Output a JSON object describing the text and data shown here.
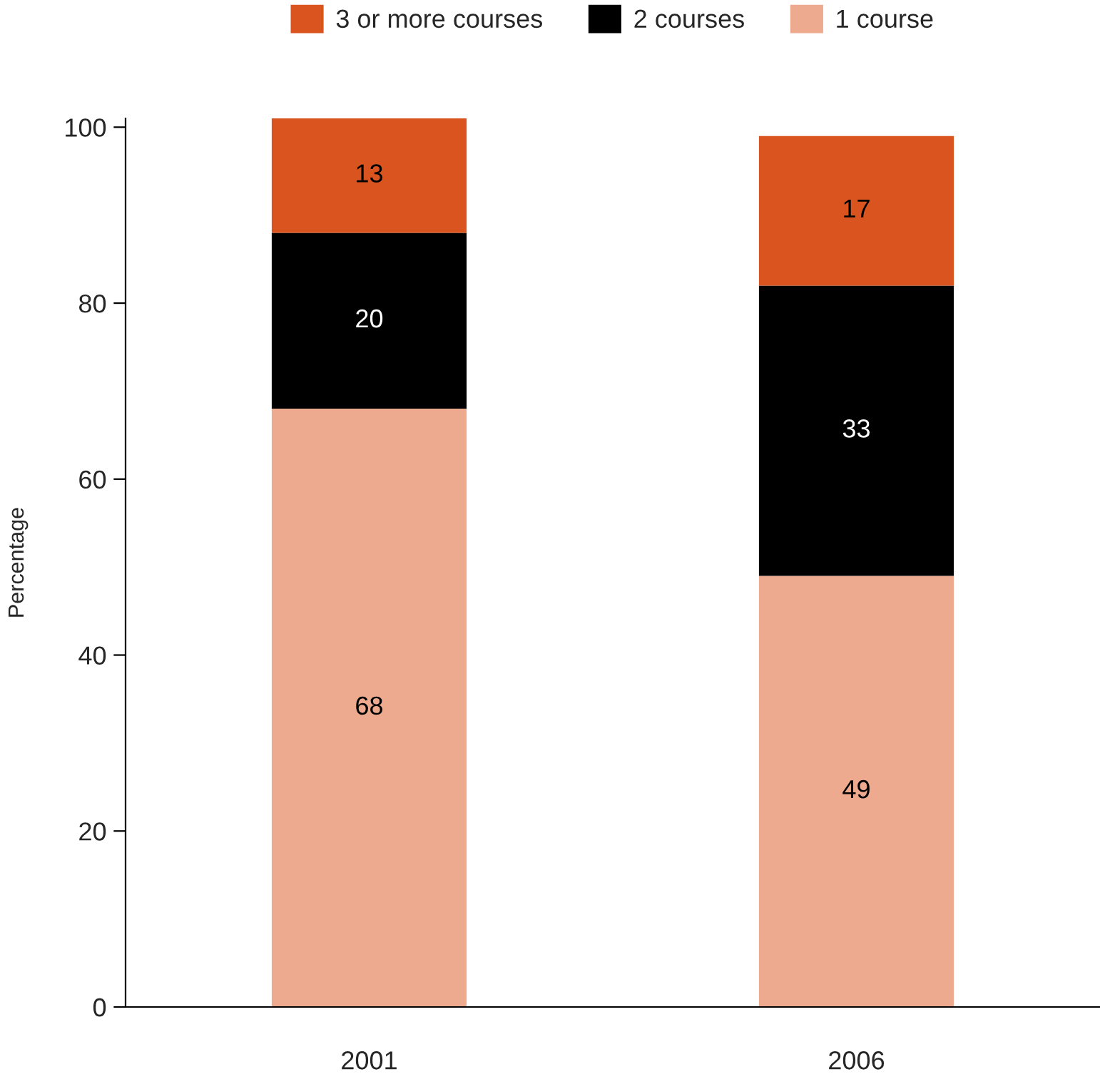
{
  "chart_data": {
    "type": "bar",
    "ylabel": "Percentage",
    "categories": [
      "2001",
      "2006"
    ],
    "series": [
      {
        "name": "1 course",
        "color": "#edaa8e",
        "values": [
          68,
          49
        ]
      },
      {
        "name": "2 courses",
        "color": "#000000",
        "values": [
          20,
          33
        ]
      },
      {
        "name": "3 or more courses",
        "color": "#d9541e",
        "values": [
          13,
          17
        ]
      }
    ],
    "stacked": true,
    "data_labels": true,
    "ylim": [
      0,
      101
    ],
    "yticks": [
      0,
      20,
      40,
      60,
      80,
      100
    ],
    "grid": false,
    "legend": "top"
  }
}
